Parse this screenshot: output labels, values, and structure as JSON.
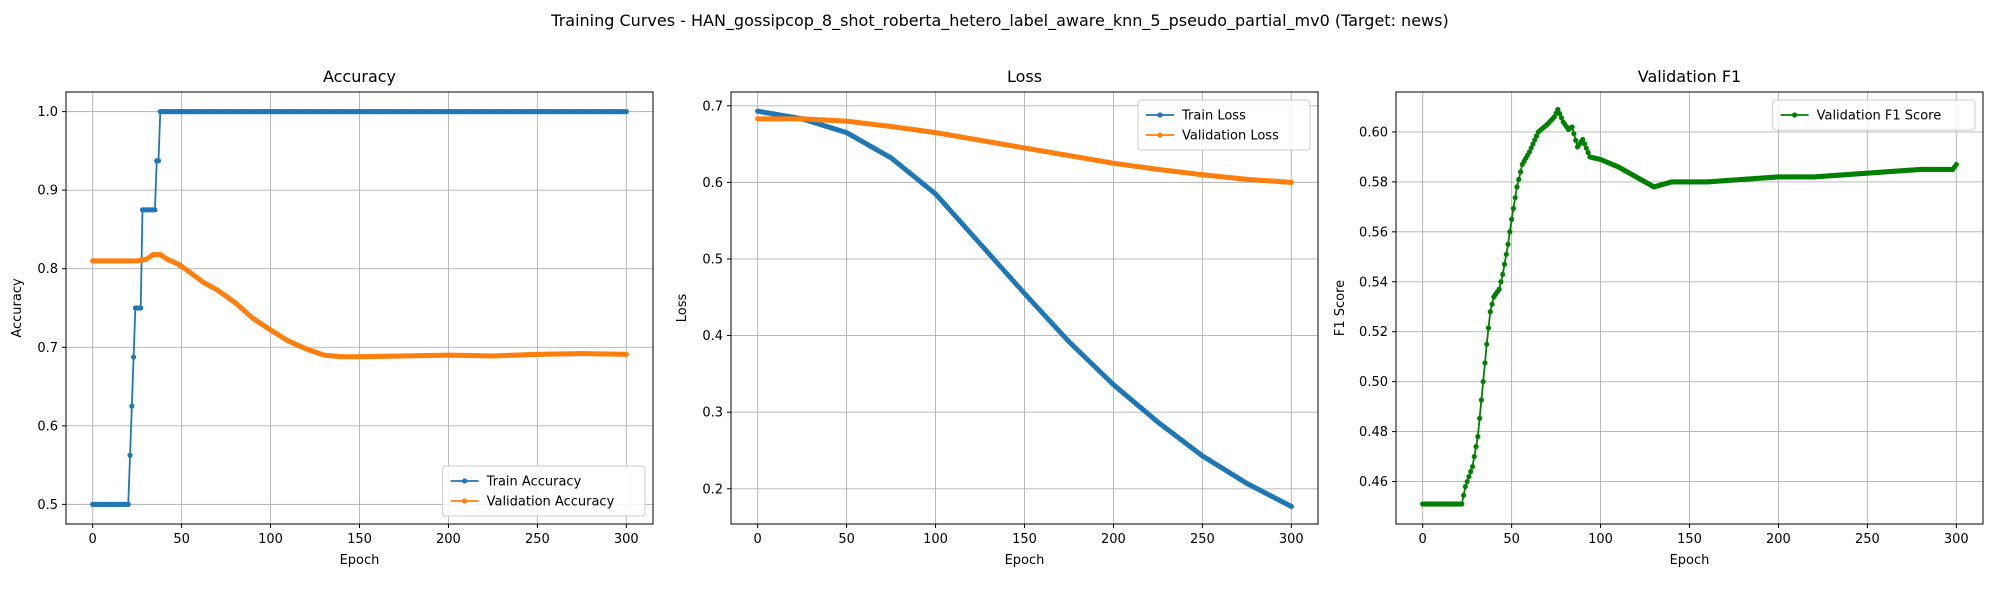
{
  "figure": {
    "title": "Training Curves - HAN_gossipcop_8_shot_roberta_hetero_label_aware_knn_5_pseudo_partial_mv0 (Target: news)"
  },
  "colors": {
    "blue": "#1f77b4",
    "orange": "#ff7f0e",
    "green": "#008000",
    "grid": "#b0b0b0",
    "axis": "#000000"
  },
  "chart_data": [
    {
      "type": "line",
      "title": "Accuracy",
      "xlabel": "Epoch",
      "ylabel": "Accuracy",
      "xlim": [
        -15,
        315
      ],
      "ylim": [
        0.475,
        1.025
      ],
      "xticks": [
        0,
        50,
        100,
        150,
        200,
        250,
        300
      ],
      "yticks": [
        0.5,
        0.6,
        0.7,
        0.8,
        0.9,
        1.0
      ],
      "ytick_labels": [
        "0.5",
        "0.6",
        "0.7",
        "0.8",
        "0.9",
        "1.0"
      ],
      "grid": true,
      "legend": "lower-right",
      "series": [
        {
          "name": "Train Accuracy",
          "color": "#1f77b4",
          "points": [
            [
              0,
              0.5
            ],
            [
              20,
              0.5
            ],
            [
              21,
              0.5625
            ],
            [
              22,
              0.625
            ],
            [
              23,
              0.6875
            ],
            [
              24,
              0.75
            ],
            [
              27,
              0.75
            ],
            [
              28,
              0.875
            ],
            [
              35,
              0.875
            ],
            [
              36,
              0.9375
            ],
            [
              37,
              0.9375
            ],
            [
              38,
              1.0
            ],
            [
              300,
              1.0
            ]
          ]
        },
        {
          "name": "Validation Accuracy",
          "color": "#ff7f0e",
          "points": [
            [
              0,
              0.81
            ],
            [
              25,
              0.81
            ],
            [
              30,
              0.812
            ],
            [
              34,
              0.818
            ],
            [
              38,
              0.818
            ],
            [
              42,
              0.812
            ],
            [
              48,
              0.806
            ],
            [
              55,
              0.795
            ],
            [
              62,
              0.783
            ],
            [
              70,
              0.773
            ],
            [
              80,
              0.757
            ],
            [
              90,
              0.737
            ],
            [
              100,
              0.722
            ],
            [
              110,
              0.708
            ],
            [
              120,
              0.698
            ],
            [
              130,
              0.69
            ],
            [
              140,
              0.688
            ],
            [
              150,
              0.688
            ],
            [
              175,
              0.689
            ],
            [
              200,
              0.69
            ],
            [
              225,
              0.689
            ],
            [
              250,
              0.691
            ],
            [
              275,
              0.692
            ],
            [
              300,
              0.691
            ]
          ]
        }
      ]
    },
    {
      "type": "line",
      "title": "Loss",
      "xlabel": "Epoch",
      "ylabel": "Loss",
      "xlim": [
        -15,
        315
      ],
      "ylim": [
        0.154,
        0.718
      ],
      "xticks": [
        0,
        50,
        100,
        150,
        200,
        250,
        300
      ],
      "yticks": [
        0.2,
        0.3,
        0.4,
        0.5,
        0.6,
        0.7
      ],
      "ytick_labels": [
        "0.2",
        "0.3",
        "0.4",
        "0.5",
        "0.6",
        "0.7"
      ],
      "grid": true,
      "legend": "top-right",
      "series": [
        {
          "name": "Train Loss",
          "color": "#1f77b4",
          "points": [
            [
              0,
              0.693
            ],
            [
              25,
              0.683
            ],
            [
              50,
              0.665
            ],
            [
              75,
              0.632
            ],
            [
              100,
              0.585
            ],
            [
              125,
              0.52
            ],
            [
              150,
              0.455
            ],
            [
              175,
              0.392
            ],
            [
              200,
              0.336
            ],
            [
              225,
              0.287
            ],
            [
              250,
              0.243
            ],
            [
              275,
              0.207
            ],
            [
              300,
              0.177
            ]
          ]
        },
        {
          "name": "Validation Loss",
          "color": "#ff7f0e",
          "points": [
            [
              0,
              0.683
            ],
            [
              25,
              0.683
            ],
            [
              50,
              0.68
            ],
            [
              75,
              0.673
            ],
            [
              100,
              0.665
            ],
            [
              125,
              0.655
            ],
            [
              150,
              0.645
            ],
            [
              175,
              0.635
            ],
            [
              200,
              0.625
            ],
            [
              225,
              0.617
            ],
            [
              250,
              0.61
            ],
            [
              275,
              0.604
            ],
            [
              300,
              0.6
            ]
          ]
        }
      ]
    },
    {
      "type": "line",
      "title": "Validation F1",
      "xlabel": "Epoch",
      "ylabel": "F1 Score",
      "xlim": [
        -15,
        315
      ],
      "ylim": [
        0.443,
        0.616
      ],
      "xticks": [
        0,
        50,
        100,
        150,
        200,
        250,
        300
      ],
      "yticks": [
        0.46,
        0.48,
        0.5,
        0.52,
        0.54,
        0.56,
        0.58,
        0.6
      ],
      "ytick_labels": [
        "0.46",
        "0.48",
        "0.50",
        "0.52",
        "0.54",
        "0.56",
        "0.58",
        "0.60"
      ],
      "grid": true,
      "legend": "top-right",
      "series": [
        {
          "name": "Validation F1 Score",
          "color": "#008000",
          "points": [
            [
              0,
              0.451
            ],
            [
              22,
              0.451
            ],
            [
              24,
              0.458
            ],
            [
              28,
              0.466
            ],
            [
              31,
              0.478
            ],
            [
              34,
              0.5
            ],
            [
              36,
              0.515
            ],
            [
              38,
              0.528
            ],
            [
              40,
              0.534
            ],
            [
              43,
              0.537
            ],
            [
              45,
              0.543
            ],
            [
              48,
              0.555
            ],
            [
              50,
              0.565
            ],
            [
              53,
              0.578
            ],
            [
              56,
              0.587
            ],
            [
              60,
              0.592
            ],
            [
              65,
              0.6
            ],
            [
              70,
              0.603
            ],
            [
              74,
              0.606
            ],
            [
              76,
              0.609
            ],
            [
              79,
              0.604
            ],
            [
              82,
              0.601
            ],
            [
              84,
              0.602
            ],
            [
              87,
              0.594
            ],
            [
              90,
              0.597
            ],
            [
              94,
              0.59
            ],
            [
              100,
              0.589
            ],
            [
              110,
              0.586
            ],
            [
              120,
              0.582
            ],
            [
              130,
              0.578
            ],
            [
              140,
              0.58
            ],
            [
              160,
              0.58
            ],
            [
              180,
              0.581
            ],
            [
              200,
              0.582
            ],
            [
              220,
              0.582
            ],
            [
              240,
              0.583
            ],
            [
              260,
              0.584
            ],
            [
              280,
              0.585
            ],
            [
              298,
              0.585
            ],
            [
              300,
              0.587
            ]
          ]
        }
      ]
    }
  ]
}
